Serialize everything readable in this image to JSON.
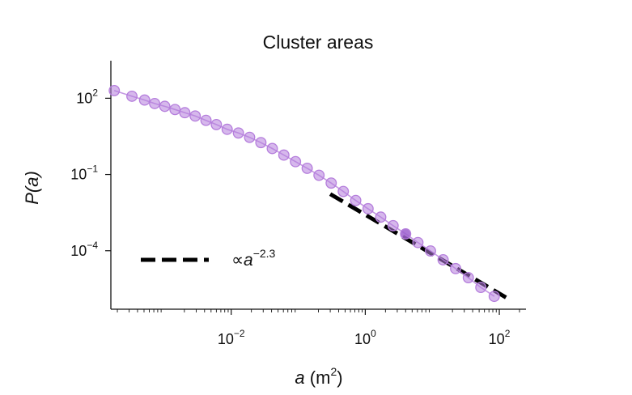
{
  "chart_data": {
    "type": "scatter",
    "title": "Cluster areas",
    "xlabel": {
      "base": "a (m",
      "sup": "2",
      "tail": ")"
    },
    "ylabel": "P(a)",
    "xscale": "log",
    "yscale": "log",
    "xlim": [
      0.00016,
      250
    ],
    "ylim": [
      5e-07,
      3000
    ],
    "x_ticks": [
      {
        "value": 0.01,
        "base": "10",
        "exp": "−2"
      },
      {
        "value": 1,
        "base": "10",
        "exp": "0"
      },
      {
        "value": 100,
        "base": "10",
        "exp": "2"
      }
    ],
    "y_ticks": [
      {
        "value": 100,
        "base": "10",
        "exp": "2"
      },
      {
        "value": 0.1,
        "base": "10",
        "exp": "−1"
      },
      {
        "value": 0.0001,
        "base": "10",
        "exp": "−4"
      }
    ],
    "grid": false,
    "series": [
      {
        "color": "#b57edc",
        "highlight_color": "#9c5fce",
        "highlight_index": 25,
        "x": [
          0.00018,
          0.00033,
          0.00051,
          0.00072,
          0.00102,
          0.00145,
          0.00203,
          0.0029,
          0.0042,
          0.006,
          0.0087,
          0.0128,
          0.0188,
          0.0277,
          0.041,
          0.061,
          0.091,
          0.136,
          0.204,
          0.31,
          0.47,
          0.72,
          1.1,
          1.7,
          2.6,
          4.0,
          6.1,
          9.4,
          14.5,
          22.3,
          34.5,
          53,
          84
        ],
        "y": [
          200,
          120,
          85,
          62,
          48,
          36,
          27,
          20,
          13.5,
          9.2,
          6.0,
          4.3,
          2.9,
          1.8,
          1.05,
          0.58,
          0.32,
          0.175,
          0.093,
          0.046,
          0.0215,
          0.0095,
          0.0045,
          0.0021,
          0.00097,
          0.00046,
          0.00021,
          9.8e-05,
          4.4e-05,
          1.98e-05,
          8.7e-06,
          3.6e-06,
          1.6e-06
        ]
      }
    ],
    "reference_line": {
      "label_symbol": "∝",
      "label_var": "a",
      "label_exp": "−2.3",
      "exponent": -2.3,
      "x": [
        0.3,
        150
      ],
      "y": [
        0.017,
        1.1e-06
      ],
      "color": "#000000",
      "dashed": true
    },
    "legend": {
      "placement": "bottom-left"
    }
  }
}
